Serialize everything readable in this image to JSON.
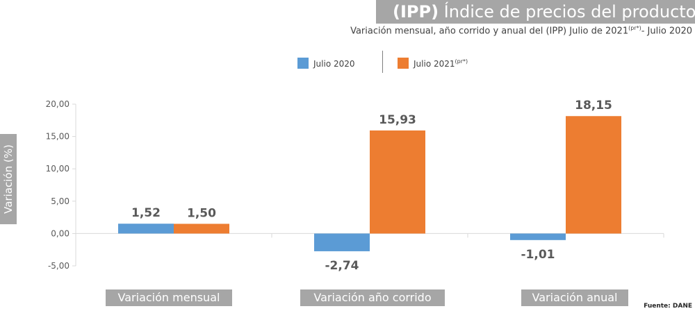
{
  "title_bold": "(IPP)",
  "title_rest": " Índice de precios del productor",
  "subtitle": "Variación mensual, año corrido  y anual del (IPP)  Julio de 2021",
  "subtitle_sup": "(pr*)",
  "subtitle_end": "- Julio 2020",
  "source": "Fuente: DANE",
  "colors": {
    "series1": "#5b9bd5",
    "series2": "#ed7d31",
    "label_bg": "#a6a6a6"
  },
  "legend": [
    {
      "label": "Julio 2020",
      "sup": ""
    },
    {
      "label": "Julio 2021",
      "sup": "(pr*)"
    }
  ],
  "chart_data": {
    "type": "bar",
    "title": "(IPP) Índice de precios del productor",
    "ylabel": "Variación  (%)",
    "xlabel": "",
    "categories": [
      "Variación mensual",
      "Variación año corrido",
      "Variación anual"
    ],
    "series": [
      {
        "name": "Julio 2020",
        "values": [
          1.52,
          -2.74,
          -1.01
        ],
        "labels": [
          "1,52",
          "-2,74",
          "-1,01"
        ]
      },
      {
        "name": "Julio 2021(pr*)",
        "values": [
          1.5,
          15.93,
          18.15
        ],
        "labels": [
          "1,50",
          "15,93",
          "18,15"
        ]
      }
    ],
    "ylim": [
      -5,
      20
    ],
    "yticks": [
      -5,
      0,
      5,
      10,
      15,
      20
    ],
    "ytick_labels": [
      "-5,00",
      "0,00",
      "5,00",
      "10,00",
      "15,00",
      "20,00"
    ],
    "grid": false,
    "legend_position": "top"
  }
}
